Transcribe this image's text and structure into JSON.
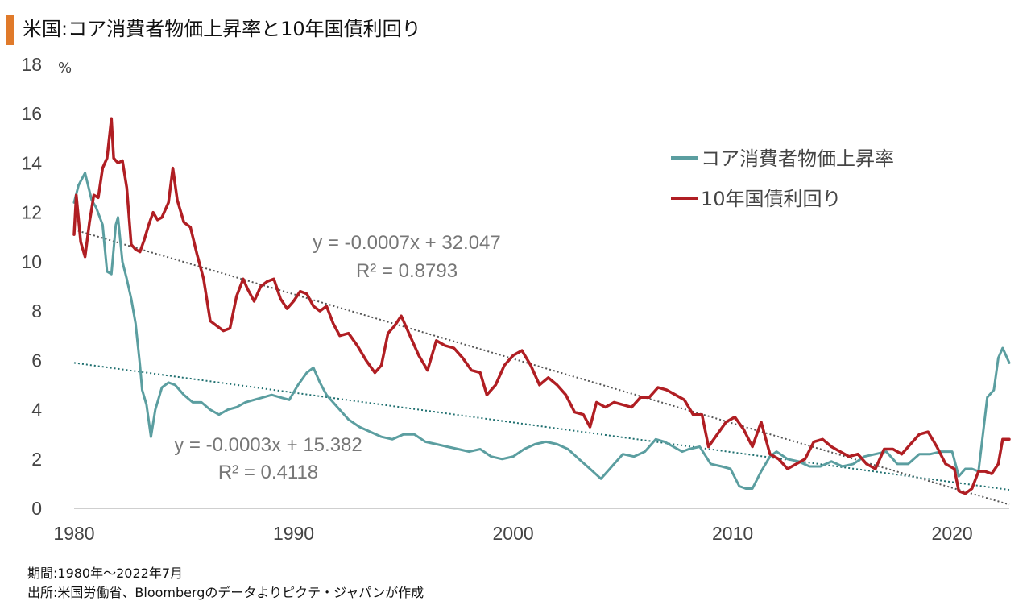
{
  "title": "米国:コア消費者物価上昇率と10年国債利回り",
  "footer": {
    "period": "期間:1980年～2022年7月",
    "source": "出所:米国労働省、Bloombergのデータよりピクテ・ジャパンが作成"
  },
  "chart_data": {
    "type": "line",
    "y_unit": "%",
    "ylim": [
      0,
      18
    ],
    "xlim": [
      1980,
      2022.6
    ],
    "x_ticks": [
      "1980",
      "1990",
      "2000",
      "2010",
      "2020"
    ],
    "y_ticks": [
      "0",
      "2",
      "4",
      "6",
      "8",
      "10",
      "12",
      "14",
      "16",
      "18"
    ],
    "grid": false,
    "legend_placement": "top-right",
    "series": [
      {
        "name": "コア消費者物価上昇率",
        "color": "#5b9ea0",
        "x": [
          1980.0,
          1980.2,
          1980.5,
          1980.8,
          1981.0,
          1981.3,
          1981.5,
          1981.7,
          1981.9,
          1982.0,
          1982.2,
          1982.4,
          1982.6,
          1982.8,
          1983.0,
          1983.1,
          1983.3,
          1983.5,
          1983.7,
          1984.0,
          1984.3,
          1984.6,
          1985.0,
          1985.4,
          1985.8,
          1986.2,
          1986.6,
          1987.0,
          1987.4,
          1987.8,
          1988.2,
          1988.6,
          1989.0,
          1989.4,
          1989.8,
          1990.2,
          1990.6,
          1990.9,
          1991.2,
          1991.5,
          1992.0,
          1992.5,
          1993.0,
          1993.5,
          1994.0,
          1994.5,
          1995.0,
          1995.5,
          1996.0,
          1996.5,
          1997.0,
          1997.5,
          1998.0,
          1998.5,
          1999.0,
          1999.5,
          2000.0,
          2000.5,
          2001.0,
          2001.5,
          2002.0,
          2002.5,
          2003.0,
          2003.5,
          2004.0,
          2004.3,
          2004.6,
          2005.0,
          2005.5,
          2006.0,
          2006.5,
          2006.9,
          2007.3,
          2007.7,
          2008.0,
          2008.5,
          2009.0,
          2009.5,
          2009.9,
          2010.3,
          2010.6,
          2010.9,
          2011.3,
          2011.7,
          2012.0,
          2012.5,
          2013.0,
          2013.5,
          2014.0,
          2014.5,
          2015.0,
          2015.5,
          2016.0,
          2016.5,
          2017.0,
          2017.5,
          2018.0,
          2018.5,
          2019.0,
          2019.5,
          2020.0,
          2020.3,
          2020.6,
          2020.9,
          2021.2,
          2021.4,
          2021.6,
          2021.9,
          2022.1,
          2022.3,
          2022.6
        ],
        "values": [
          12.4,
          13.1,
          13.6,
          12.5,
          12.2,
          11.5,
          9.6,
          9.5,
          11.5,
          11.8,
          10.0,
          9.3,
          8.5,
          7.5,
          5.8,
          4.8,
          4.2,
          2.9,
          4.0,
          4.9,
          5.1,
          5.0,
          4.6,
          4.3,
          4.3,
          4.0,
          3.8,
          4.0,
          4.1,
          4.3,
          4.4,
          4.5,
          4.6,
          4.5,
          4.4,
          5.0,
          5.5,
          5.7,
          5.1,
          4.6,
          4.1,
          3.6,
          3.3,
          3.1,
          2.9,
          2.8,
          3.0,
          3.0,
          2.7,
          2.6,
          2.5,
          2.4,
          2.3,
          2.4,
          2.1,
          2.0,
          2.1,
          2.4,
          2.6,
          2.7,
          2.6,
          2.4,
          2.0,
          1.6,
          1.2,
          1.5,
          1.8,
          2.2,
          2.1,
          2.3,
          2.8,
          2.7,
          2.5,
          2.3,
          2.4,
          2.5,
          1.8,
          1.7,
          1.6,
          0.9,
          0.8,
          0.8,
          1.5,
          2.1,
          2.3,
          2.0,
          1.9,
          1.7,
          1.7,
          1.9,
          1.7,
          1.8,
          2.1,
          2.2,
          2.3,
          1.8,
          1.8,
          2.2,
          2.2,
          2.3,
          2.3,
          1.3,
          1.6,
          1.6,
          1.5,
          3.0,
          4.5,
          4.8,
          6.1,
          6.5,
          5.9
        ]
      },
      {
        "name": "10年国債利回り",
        "color": "#b01e23",
        "x": [
          1980.0,
          1980.1,
          1980.3,
          1980.5,
          1980.7,
          1980.9,
          1981.1,
          1981.3,
          1981.5,
          1981.7,
          1981.8,
          1982.0,
          1982.2,
          1982.4,
          1982.6,
          1982.8,
          1983.0,
          1983.2,
          1983.4,
          1983.6,
          1983.8,
          1984.0,
          1984.3,
          1984.5,
          1984.7,
          1985.0,
          1985.3,
          1985.6,
          1985.9,
          1986.2,
          1986.5,
          1986.8,
          1987.1,
          1987.4,
          1987.7,
          1987.9,
          1988.2,
          1988.5,
          1988.8,
          1989.1,
          1989.4,
          1989.7,
          1990.0,
          1990.3,
          1990.6,
          1990.9,
          1991.2,
          1991.5,
          1991.8,
          1992.1,
          1992.5,
          1992.9,
          1993.3,
          1993.7,
          1994.0,
          1994.3,
          1994.6,
          1994.9,
          1995.3,
          1995.7,
          1996.1,
          1996.5,
          1996.9,
          1997.3,
          1997.7,
          1998.1,
          1998.5,
          1998.8,
          1999.2,
          1999.6,
          2000.0,
          2000.4,
          2000.8,
          2001.2,
          2001.6,
          2002.0,
          2002.4,
          2002.8,
          2003.2,
          2003.5,
          2003.8,
          2004.2,
          2004.6,
          2005.0,
          2005.4,
          2005.8,
          2006.2,
          2006.6,
          2007.0,
          2007.4,
          2007.8,
          2008.2,
          2008.6,
          2008.9,
          2009.3,
          2009.7,
          2010.1,
          2010.5,
          2010.9,
          2011.3,
          2011.7,
          2012.1,
          2012.5,
          2012.9,
          2013.3,
          2013.7,
          2014.1,
          2014.5,
          2014.9,
          2015.3,
          2015.7,
          2016.1,
          2016.5,
          2016.9,
          2017.3,
          2017.7,
          2018.1,
          2018.5,
          2018.9,
          2019.3,
          2019.7,
          2020.1,
          2020.3,
          2020.6,
          2020.9,
          2021.2,
          2021.5,
          2021.8,
          2022.1,
          2022.3,
          2022.6
        ],
        "values": [
          11.1,
          12.7,
          10.8,
          10.2,
          11.6,
          12.7,
          12.6,
          13.8,
          14.2,
          15.8,
          14.2,
          14.0,
          14.1,
          13.0,
          10.7,
          10.5,
          10.4,
          10.9,
          11.5,
          12.0,
          11.7,
          11.8,
          12.4,
          13.8,
          12.5,
          11.6,
          11.4,
          10.3,
          9.3,
          7.6,
          7.4,
          7.2,
          7.3,
          8.6,
          9.3,
          8.9,
          8.4,
          9.0,
          9.2,
          9.3,
          8.5,
          8.1,
          8.4,
          8.8,
          8.7,
          8.2,
          8.0,
          8.2,
          7.5,
          7.0,
          7.1,
          6.6,
          6.0,
          5.5,
          5.8,
          7.1,
          7.4,
          7.8,
          7.0,
          6.2,
          5.6,
          6.8,
          6.6,
          6.5,
          6.1,
          5.6,
          5.5,
          4.6,
          5.0,
          5.8,
          6.2,
          6.4,
          5.8,
          5.0,
          5.3,
          5.0,
          4.6,
          3.9,
          3.8,
          3.3,
          4.3,
          4.1,
          4.3,
          4.2,
          4.1,
          4.5,
          4.5,
          4.9,
          4.8,
          4.6,
          4.4,
          3.8,
          3.8,
          2.5,
          3.0,
          3.5,
          3.7,
          3.2,
          2.5,
          3.5,
          2.2,
          2.0,
          1.6,
          1.8,
          2.0,
          2.7,
          2.8,
          2.5,
          2.3,
          2.1,
          2.2,
          1.8,
          1.6,
          2.4,
          2.4,
          2.2,
          2.6,
          3.0,
          3.1,
          2.5,
          1.8,
          1.6,
          0.7,
          0.6,
          0.8,
          1.5,
          1.5,
          1.4,
          1.8,
          2.8,
          2.8
        ]
      }
    ],
    "trendlines": [
      {
        "series": "10年国債利回り",
        "equation": "y = -0.0007x + 32.047",
        "r2": "R² = 0.8793",
        "style": "dotted",
        "color": "#555555",
        "x": [
          1980,
          2022.6
        ],
        "values": [
          11.3,
          0.15
        ]
      },
      {
        "series": "コア消費者物価上昇率",
        "equation": "y = -0.0003x + 15.382",
        "r2": "R² = 0.4118",
        "style": "dotted",
        "color": "#1f6f6f",
        "x": [
          1980,
          2022.6
        ],
        "values": [
          5.9,
          0.75
        ]
      }
    ]
  }
}
